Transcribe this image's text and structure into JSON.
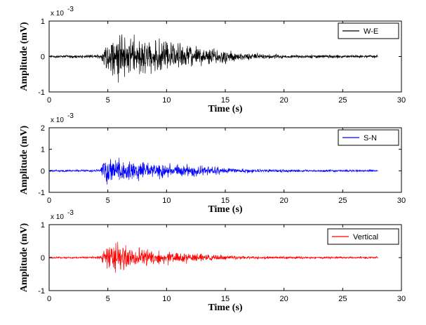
{
  "chart_data": [
    {
      "type": "line",
      "title": "",
      "xlabel": "Time (s)",
      "ylabel": "Amplitude (mV)",
      "y_exponent_label": "x 10",
      "y_exponent_power": "-3",
      "xlim": [
        0,
        30
      ],
      "ylim": [
        -1,
        1
      ],
      "xticks": [
        0,
        5,
        10,
        15,
        20,
        25,
        30
      ],
      "yticks": [
        -1,
        0,
        1
      ],
      "legend_position": "top-right",
      "series": [
        {
          "name": "W-E",
          "color": "#000000",
          "duration_s": 28,
          "envelope": {
            "t": [
              0,
              4.4,
              4.8,
              5.3,
              6.0,
              7.0,
              8.0,
              9.5,
              11.0,
              12.5,
              14.0,
              16.0,
              18.0,
              21.0,
              28.0
            ],
            "amp": [
              0.05,
              0.07,
              0.5,
              0.9,
              0.85,
              0.75,
              0.7,
              0.6,
              0.5,
              0.4,
              0.3,
              0.18,
              0.1,
              0.07,
              0.06
            ]
          }
        }
      ]
    },
    {
      "type": "line",
      "title": "",
      "xlabel": "Time (s)",
      "ylabel": "Amplitude (mV)",
      "y_exponent_label": "x 10",
      "y_exponent_power": "-3",
      "xlim": [
        0,
        30
      ],
      "ylim": [
        -1,
        2
      ],
      "xticks": [
        0,
        5,
        10,
        15,
        20,
        25,
        30
      ],
      "yticks": [
        -1,
        0,
        1,
        2
      ],
      "legend_position": "top-right",
      "series": [
        {
          "name": "S-N",
          "color": "#0000ff",
          "duration_s": 28,
          "envelope": {
            "t": [
              0,
              4.3,
              4.6,
              5.0,
              6.0,
              7.0,
              8.0,
              9.5,
              11.0,
              12.5,
              14.0,
              16.0,
              18.0,
              21.0,
              28.0
            ],
            "amp": [
              0.06,
              0.08,
              0.6,
              1.0,
              0.65,
              0.6,
              0.55,
              0.45,
              0.4,
              0.35,
              0.25,
              0.15,
              0.1,
              0.08,
              0.06
            ]
          }
        }
      ]
    },
    {
      "type": "line",
      "title": "",
      "xlabel": "Time (s)",
      "ylabel": "Amplitude (mV)",
      "y_exponent_label": "x 10",
      "y_exponent_power": "-3",
      "xlim": [
        0,
        30
      ],
      "ylim": [
        -1,
        1
      ],
      "xticks": [
        0,
        5,
        10,
        15,
        20,
        25,
        30
      ],
      "yticks": [
        -1,
        0,
        1
      ],
      "legend_position": "top-right",
      "series": [
        {
          "name": "Vertical",
          "color": "#ff0000",
          "duration_s": 28,
          "envelope": {
            "t": [
              0,
              4.3,
              4.6,
              5.5,
              6.2,
              7.0,
              8.0,
              9.5,
              11.0,
              12.5,
              14.0,
              16.0,
              18.0,
              21.0,
              28.0
            ],
            "amp": [
              0.03,
              0.05,
              0.35,
              0.55,
              0.7,
              0.45,
              0.35,
              0.3,
              0.22,
              0.18,
              0.12,
              0.08,
              0.06,
              0.05,
              0.04
            ]
          }
        }
      ]
    }
  ]
}
